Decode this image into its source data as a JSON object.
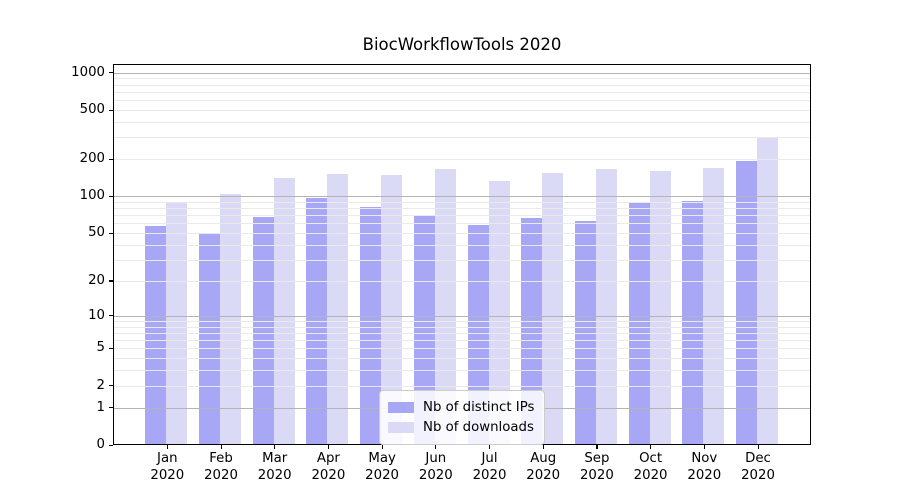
{
  "chart_data": {
    "type": "bar",
    "title": "BiocWorkflowTools 2020",
    "categories": [
      "Jan\n2020",
      "Feb\n2020",
      "Mar\n2020",
      "Apr\n2020",
      "May\n2020",
      "Jun\n2020",
      "Jul\n2020",
      "Aug\n2020",
      "Sep\n2020",
      "Oct\n2020",
      "Nov\n2020",
      "Dec\n2020"
    ],
    "series": [
      {
        "name": "Nb of distinct IPs",
        "color": "#a7a7f6",
        "values": [
          57,
          49,
          68,
          96,
          82,
          70,
          58,
          66,
          63,
          90,
          92,
          195
        ]
      },
      {
        "name": "Nb of downloads",
        "color": "#dadaf7",
        "values": [
          90,
          104,
          140,
          151,
          149,
          167,
          133,
          155,
          167,
          160,
          170,
          297
        ]
      }
    ],
    "y_scale": "log1p",
    "y_ticks": [
      0,
      1,
      2,
      5,
      10,
      20,
      50,
      100,
      200,
      500,
      1000
    ],
    "y_minor_ticks": [
      3,
      4,
      6,
      7,
      8,
      9,
      30,
      40,
      60,
      70,
      80,
      90,
      300,
      400,
      600,
      700,
      800,
      900
    ],
    "y_axis_max_value": 1186,
    "grid": true,
    "grid_major_color": "#b4b4b4",
    "grid_minor_color": "#eaeaea",
    "legend_position": "lower center",
    "xlabel": "",
    "ylabel": ""
  }
}
